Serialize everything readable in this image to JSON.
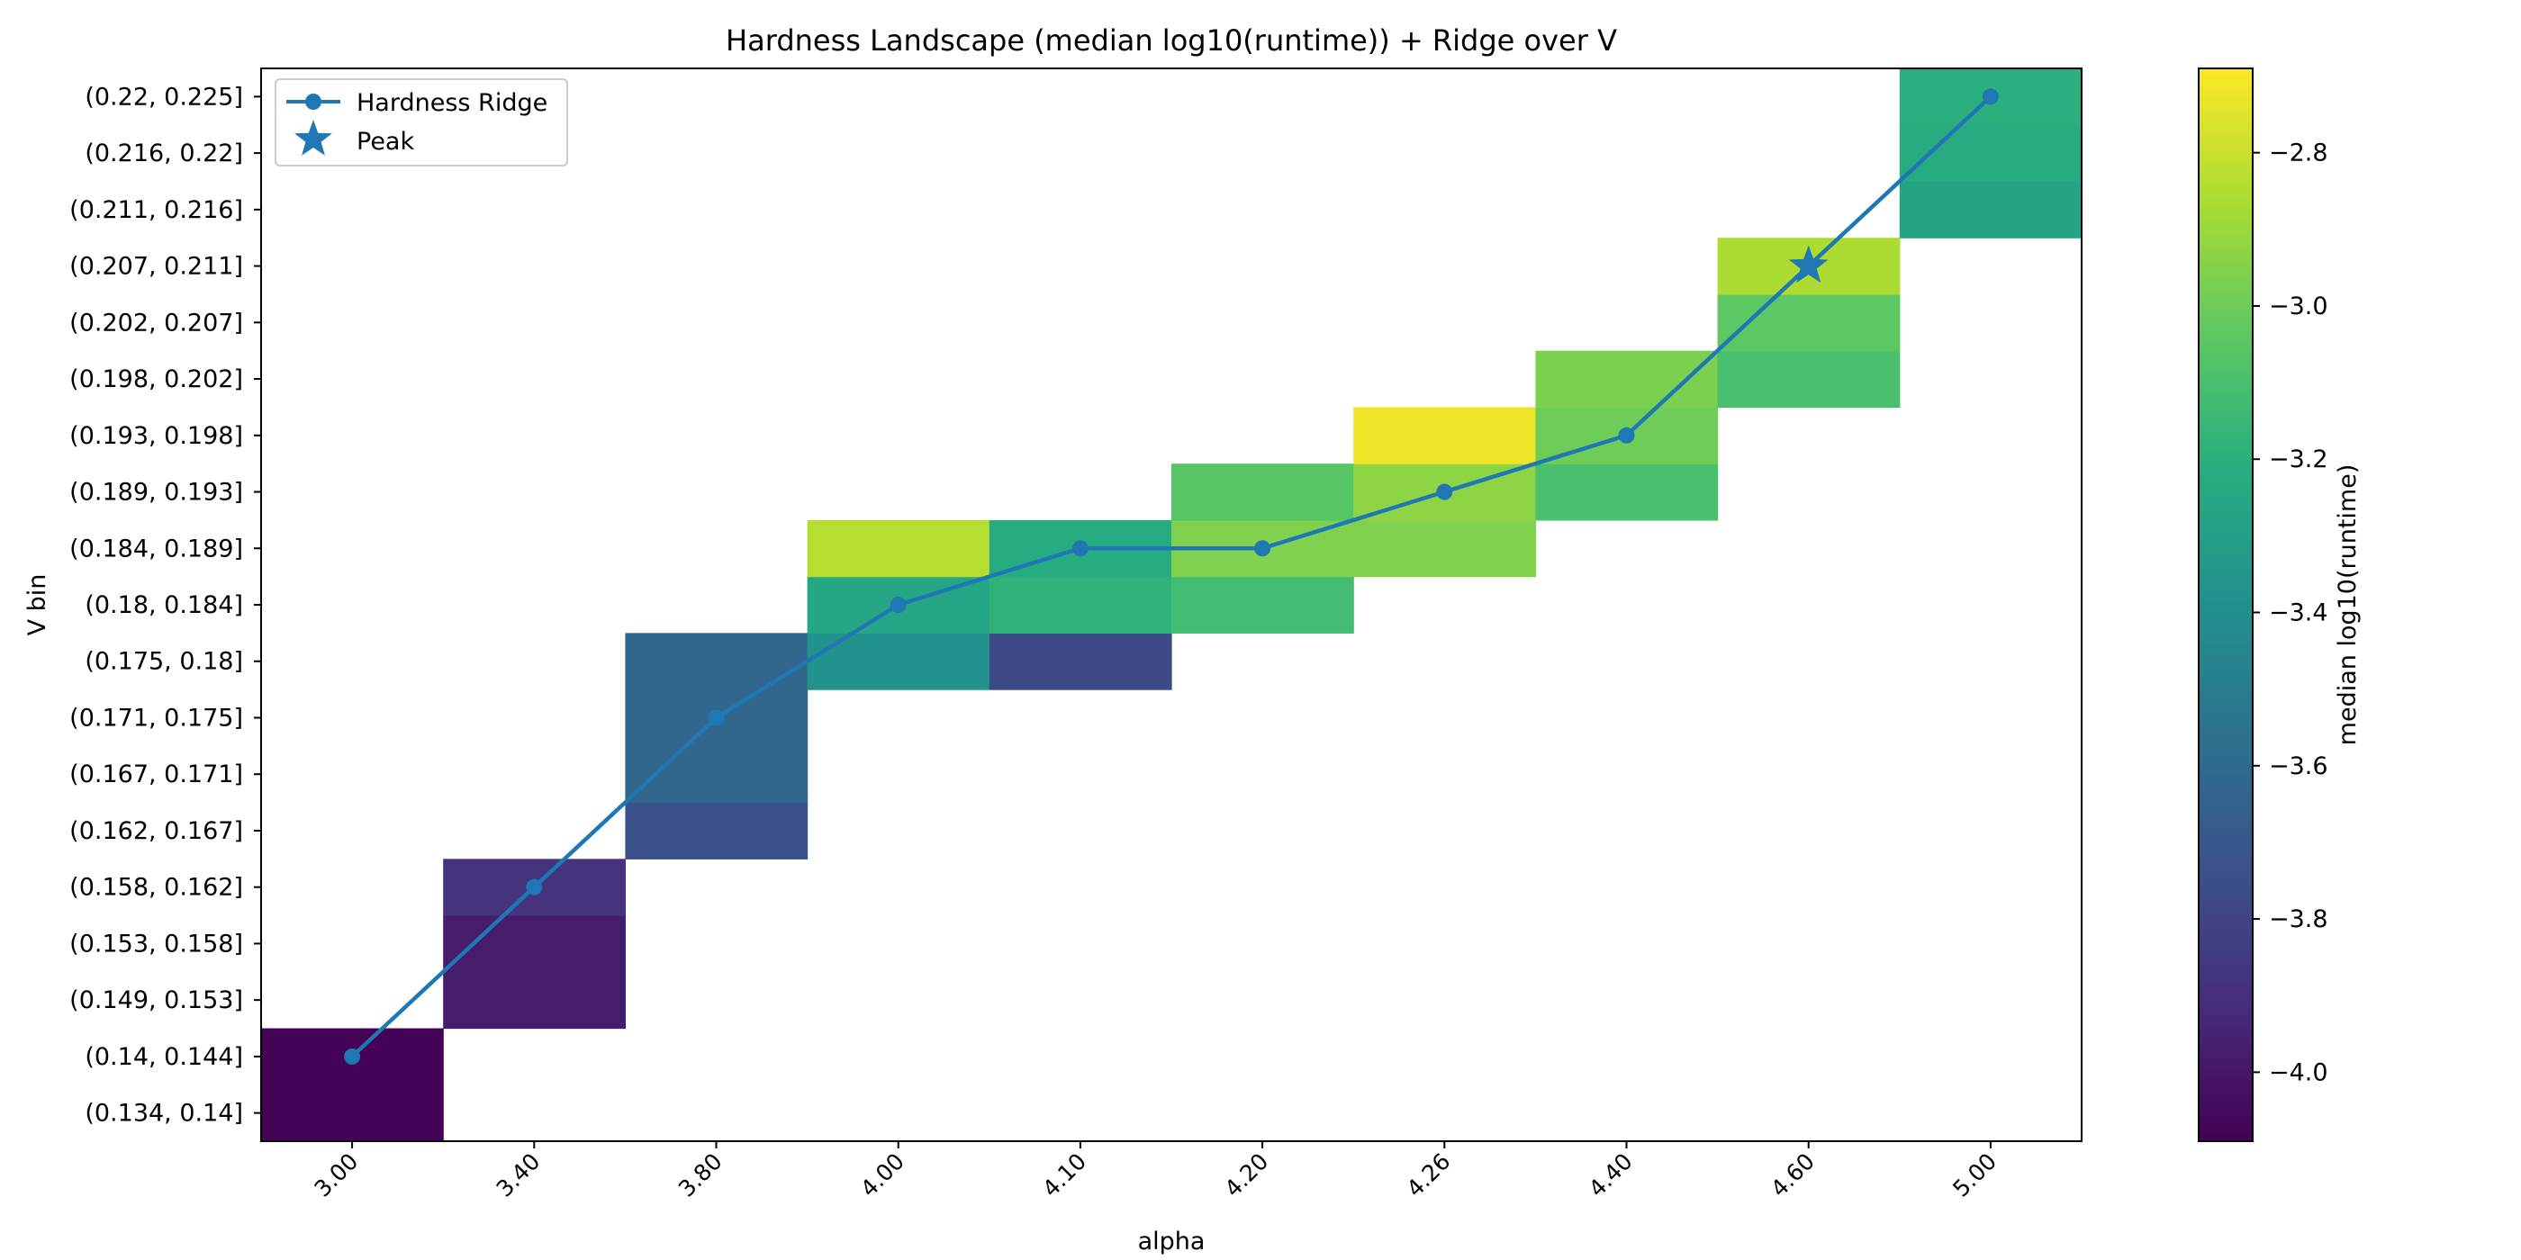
{
  "chart_data": {
    "type": "heatmap",
    "title": "Hardness Landscape (median log10(runtime)) + Ridge over V",
    "xlabel": "alpha",
    "ylabel": "V bin",
    "x_categories": [
      "3.00",
      "3.40",
      "3.80",
      "4.00",
      "4.10",
      "4.20",
      "4.26",
      "4.40",
      "4.60",
      "5.00"
    ],
    "y_categories_bottom_to_top": [
      "(0.134, 0.14]",
      "(0.14, 0.144]",
      "(0.149, 0.153]",
      "(0.153, 0.158]",
      "(0.158, 0.162]",
      "(0.162, 0.167]",
      "(0.167, 0.171]",
      "(0.171, 0.175]",
      "(0.175, 0.18]",
      "(0.18, 0.184]",
      "(0.184, 0.189]",
      "(0.189, 0.193]",
      "(0.193, 0.198]",
      "(0.198, 0.202]",
      "(0.202, 0.207]",
      "(0.207, 0.211]",
      "(0.211, 0.216]",
      "(0.216, 0.22]",
      "(0.22, 0.225]"
    ],
    "cells": [
      {
        "alpha": "3.00",
        "v_bin": "(0.134, 0.14]",
        "value": -4.08
      },
      {
        "alpha": "3.00",
        "v_bin": "(0.14, 0.144]",
        "value": -4.08
      },
      {
        "alpha": "3.40",
        "v_bin": "(0.149, 0.153]",
        "value": -3.98
      },
      {
        "alpha": "3.40",
        "v_bin": "(0.153, 0.158]",
        "value": -3.98
      },
      {
        "alpha": "3.40",
        "v_bin": "(0.158, 0.162]",
        "value": -3.88
      },
      {
        "alpha": "3.80",
        "v_bin": "(0.162, 0.167]",
        "value": -3.74
      },
      {
        "alpha": "3.80",
        "v_bin": "(0.167, 0.171]",
        "value": -3.62
      },
      {
        "alpha": "3.80",
        "v_bin": "(0.171, 0.175]",
        "value": -3.62
      },
      {
        "alpha": "3.80",
        "v_bin": "(0.175, 0.18]",
        "value": -3.62
      },
      {
        "alpha": "4.00",
        "v_bin": "(0.175, 0.18]",
        "value": -3.38
      },
      {
        "alpha": "4.00",
        "v_bin": "(0.18, 0.184]",
        "value": -3.26
      },
      {
        "alpha": "4.00",
        "v_bin": "(0.184, 0.189]",
        "value": -2.84
      },
      {
        "alpha": "4.10",
        "v_bin": "(0.175, 0.18]",
        "value": -3.78
      },
      {
        "alpha": "4.10",
        "v_bin": "(0.18, 0.184]",
        "value": -3.18
      },
      {
        "alpha": "4.10",
        "v_bin": "(0.184, 0.189]",
        "value": -3.22
      },
      {
        "alpha": "4.20",
        "v_bin": "(0.18, 0.184]",
        "value": -3.12
      },
      {
        "alpha": "4.20",
        "v_bin": "(0.184, 0.189]",
        "value": -2.96
      },
      {
        "alpha": "4.20",
        "v_bin": "(0.189, 0.193]",
        "value": -3.06
      },
      {
        "alpha": "4.26",
        "v_bin": "(0.184, 0.189]",
        "value": -2.96
      },
      {
        "alpha": "4.26",
        "v_bin": "(0.189, 0.193]",
        "value": -2.93
      },
      {
        "alpha": "4.26",
        "v_bin": "(0.193, 0.198]",
        "value": -2.72
      },
      {
        "alpha": "4.40",
        "v_bin": "(0.189, 0.193]",
        "value": -3.1
      },
      {
        "alpha": "4.40",
        "v_bin": "(0.193, 0.198]",
        "value": -3.0
      },
      {
        "alpha": "4.40",
        "v_bin": "(0.198, 0.202]",
        "value": -2.97
      },
      {
        "alpha": "4.60",
        "v_bin": "(0.198, 0.202]",
        "value": -3.1
      },
      {
        "alpha": "4.60",
        "v_bin": "(0.202, 0.207]",
        "value": -3.04
      },
      {
        "alpha": "4.60",
        "v_bin": "(0.207, 0.211]",
        "value": -2.86
      },
      {
        "alpha": "5.00",
        "v_bin": "(0.211, 0.216]",
        "value": -3.27
      },
      {
        "alpha": "5.00",
        "v_bin": "(0.216, 0.22]",
        "value": -3.22
      },
      {
        "alpha": "5.00",
        "v_bin": "(0.22, 0.225]",
        "value": -3.2
      }
    ],
    "ridge": {
      "name": "Hardness Ridge",
      "points": [
        {
          "alpha": "3.00",
          "v_bin": "(0.14, 0.144]"
        },
        {
          "alpha": "3.40",
          "v_bin": "(0.158, 0.162]"
        },
        {
          "alpha": "3.80",
          "v_bin": "(0.171, 0.175]"
        },
        {
          "alpha": "4.00",
          "v_bin": "(0.18, 0.184]"
        },
        {
          "alpha": "4.10",
          "v_bin": "(0.184, 0.189]"
        },
        {
          "alpha": "4.20",
          "v_bin": "(0.184, 0.189]"
        },
        {
          "alpha": "4.26",
          "v_bin": "(0.189, 0.193]"
        },
        {
          "alpha": "4.40",
          "v_bin": "(0.193, 0.198]"
        },
        {
          "alpha": "4.60",
          "v_bin": "(0.207, 0.211]"
        },
        {
          "alpha": "5.00",
          "v_bin": "(0.22, 0.225]"
        }
      ],
      "color": "#1f77b4"
    },
    "peak": {
      "name": "Peak",
      "alpha": "4.60",
      "v_bin": "(0.207, 0.211]",
      "color": "#1f77b4"
    },
    "colorbar": {
      "label": "median log10(runtime)",
      "colormap": "viridis",
      "vmin": -4.09,
      "vmax": -2.69,
      "ticks": [
        -2.8,
        -3.0,
        -3.2,
        -3.4,
        -3.6,
        -3.8,
        -4.0
      ],
      "tick_labels": [
        "−2.8",
        "−3.0",
        "−3.2",
        "−3.4",
        "−3.6",
        "−3.8",
        "−4.0"
      ]
    },
    "legend": {
      "position": "upper-left",
      "entries": [
        "Hardness Ridge",
        "Peak"
      ]
    },
    "grid": false
  }
}
